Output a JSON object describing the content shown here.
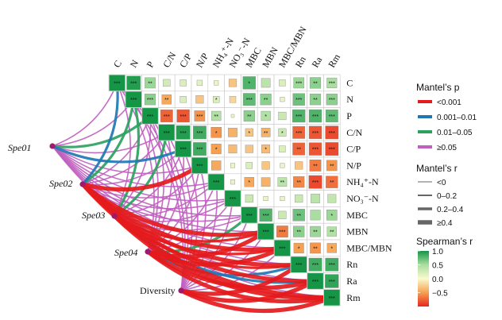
{
  "chart_data": {
    "type": "heatmap",
    "variables": [
      "C",
      "N",
      "P",
      "C/N",
      "C/P",
      "N/P",
      "NH₄⁺-N",
      "NO₃⁻-N",
      "MBC",
      "MBN",
      "MBC/MBN",
      "Rn",
      "Ra",
      "Rm"
    ],
    "matrix": [
      [
        1,
        0.95,
        0.55,
        0.25,
        0.2,
        0.15,
        0.1,
        -0.3,
        0.8,
        0.4,
        0.2,
        0.55,
        0.6,
        0.5
      ],
      [
        0.95,
        1,
        0.6,
        -0.45,
        0.2,
        -0.3,
        0.2,
        -0.2,
        0.75,
        0.6,
        0.1,
        0.7,
        0.6,
        0.6
      ],
      [
        0.55,
        0.6,
        1,
        -0.75,
        -0.8,
        -0.55,
        0.45,
        0.05,
        0.6,
        0.45,
        0.3,
        0.8,
        0.8,
        0.75
      ],
      [
        0.25,
        -0.45,
        -0.75,
        1,
        0.95,
        0.85,
        -0.55,
        -0.4,
        -0.3,
        -0.4,
        0.3,
        -0.75,
        -0.8,
        -0.85
      ],
      [
        0.2,
        0.2,
        -0.8,
        0.95,
        1,
        0.85,
        -0.5,
        -0.35,
        -0.3,
        -0.35,
        0.2,
        -0.75,
        -0.8,
        -0.85
      ],
      [
        0.15,
        -0.3,
        -0.55,
        0.85,
        0.85,
        1,
        -0.45,
        0.1,
        0.2,
        -0.3,
        0.1,
        -0.3,
        -0.65,
        -0.55
      ],
      [
        0.1,
        0.2,
        0.45,
        -0.55,
        -0.5,
        -0.45,
        1,
        0.1,
        -0.45,
        -0.4,
        0.4,
        -0.6,
        -0.85,
        -0.7
      ],
      [
        -0.3,
        -0.2,
        0.05,
        -0.4,
        -0.35,
        0.1,
        0.1,
        1,
        0.3,
        0.1,
        0.1,
        0.3,
        0.4,
        0.35
      ],
      [
        0.8,
        0.75,
        0.6,
        -0.3,
        -0.3,
        0.2,
        -0.45,
        0.3,
        1,
        0.8,
        0.3,
        0.7,
        0.5,
        0.55
      ],
      [
        0.4,
        0.6,
        0.45,
        -0.4,
        -0.35,
        -0.3,
        -0.4,
        0.1,
        0.8,
        1,
        -0.65,
        0.6,
        0.55,
        0.45
      ],
      [
        0.2,
        0.1,
        0.3,
        0.3,
        0.2,
        0.1,
        0.4,
        0.1,
        0.3,
        -0.65,
        1,
        -0.5,
        -0.55,
        -0.45
      ],
      [
        0.55,
        0.7,
        0.8,
        -0.75,
        -0.75,
        -0.3,
        -0.6,
        0.3,
        0.7,
        0.6,
        -0.5,
        1,
        0.85,
        0.85
      ],
      [
        0.6,
        0.6,
        0.8,
        -0.8,
        -0.8,
        -0.65,
        -0.85,
        0.4,
        0.5,
        0.55,
        -0.55,
        0.85,
        1,
        0.9
      ],
      [
        0.5,
        0.6,
        0.75,
        -0.85,
        -0.85,
        -0.55,
        -0.7,
        0.35,
        0.55,
        0.45,
        -0.45,
        0.85,
        0.9,
        1
      ]
    ],
    "significance": [
      [
        "***",
        "***",
        "**",
        "",
        "",
        "",
        "",
        "",
        "*",
        "",
        "",
        "***",
        "**",
        "***"
      ],
      [
        "",
        "***",
        "***",
        "**",
        "",
        "",
        "*",
        "",
        "***",
        "**",
        "",
        "***",
        "**",
        "***"
      ],
      [
        "",
        "",
        "***",
        "***",
        "***",
        "***",
        "**",
        "",
        "**",
        "*",
        "",
        "***",
        "***",
        "***"
      ],
      [
        "",
        "",
        "",
        "***",
        "***",
        "***",
        "*",
        "",
        "*",
        "**",
        "*",
        "***",
        "***",
        "***"
      ],
      [
        "",
        "",
        "",
        "",
        "***",
        "***",
        "*",
        "",
        "",
        "*",
        "",
        "**",
        "***",
        "***"
      ],
      [
        "",
        "",
        "",
        "",
        "",
        "***",
        "",
        "",
        "",
        "",
        "",
        "",
        "**",
        "**"
      ],
      [
        "",
        "",
        "",
        "",
        "",
        "",
        "***",
        "",
        "*",
        "",
        "**",
        "**",
        "***",
        "**"
      ],
      [
        "",
        "",
        "",
        "",
        "",
        "",
        "",
        "***",
        "",
        "",
        "",
        "",
        "",
        ""
      ],
      [
        "",
        "",
        "",
        "",
        "",
        "",
        "",
        "",
        "***",
        "***",
        "",
        "**",
        "",
        "*"
      ],
      [
        "",
        "",
        "",
        "",
        "",
        "",
        "",
        "",
        "",
        "***",
        "***",
        "**",
        "**",
        "**"
      ],
      [
        "",
        "",
        "",
        "",
        "",
        "",
        "",
        "",
        "",
        "",
        "***",
        "*",
        "**",
        "*"
      ],
      [
        "",
        "",
        "",
        "",
        "",
        "",
        "",
        "",
        "",
        "",
        "",
        "***",
        "***",
        "***"
      ],
      [
        "",
        "",
        "",
        "",
        "",
        "",
        "",
        "",
        "",
        "",
        "",
        "",
        "***",
        "***"
      ],
      [
        "",
        "",
        "",
        "",
        "",
        "",
        "",
        "",
        "",
        "",
        "",
        "",
        "",
        "***"
      ]
    ],
    "groups": [
      "Spe01",
      "Spe02",
      "Spe03",
      "Spe04",
      "Diversity"
    ],
    "mantel": [
      {
        "group": "Spe01",
        "p": [
          ">=0.05",
          ">=0.05",
          "0.01-0.05",
          ">=0.05",
          "0.001-0.01",
          ">=0.05",
          ">=0.05",
          ">=0.05",
          ">=0.05",
          ">=0.05",
          ">=0.05",
          ">=0.05",
          ">=0.05",
          ">=0.05"
        ],
        "r": [
          0.1,
          0.1,
          0.2,
          0.1,
          0.3,
          0.1,
          0.1,
          0.1,
          0.1,
          0.1,
          0.1,
          0.1,
          0.1,
          0.1
        ]
      },
      {
        "group": "Spe02",
        "p": [
          "0.001-0.01",
          "0.01-0.05",
          ">=0.05",
          ">=0.05",
          ">=0.05",
          "<0.001",
          ">=0.05",
          ">=0.05",
          ">=0.05",
          "<0.001",
          "<0.001",
          "<0.001",
          "<0.001",
          "<0.001"
        ],
        "r": [
          0.3,
          0.2,
          0.1,
          0.1,
          0.1,
          0.5,
          0.1,
          0.1,
          0.1,
          0.5,
          0.5,
          0.5,
          0.5,
          0.5
        ]
      },
      {
        "group": "Spe03",
        "p": [
          ">=0.05",
          "0.01-0.05",
          ">=0.05",
          "0.01-0.05",
          ">=0.05",
          ">=0.05",
          ">=0.05",
          ">=0.05",
          ">=0.05",
          "<0.001",
          "<0.001",
          "<0.001",
          "0.001-0.01",
          "<0.001"
        ],
        "r": [
          0.1,
          0.2,
          0.1,
          0.2,
          0.1,
          0.1,
          0.1,
          0.1,
          0.1,
          0.3,
          0.3,
          0.3,
          0.3,
          0.4
        ]
      },
      {
        "group": "Spe04",
        "p": [
          ">=0.05",
          ">=0.05",
          ">=0.05",
          ">=0.05",
          ">=0.05",
          ">=0.05",
          ">=0.05",
          ">=0.05",
          "0.01-0.05",
          "<0.001",
          "<0.001",
          "0.001-0.01",
          "<0.001",
          "<0.001"
        ],
        "r": [
          0.1,
          0.1,
          0.1,
          0.1,
          0.1,
          0.1,
          0.1,
          0.1,
          0.2,
          0.4,
          0.4,
          0.3,
          0.4,
          0.4
        ]
      },
      {
        "group": "Diversity",
        "p": [
          ">=0.05",
          ">=0.05",
          ">=0.05",
          ">=0.05",
          ">=0.05",
          ">=0.05",
          ">=0.05",
          ">=0.05",
          ">=0.05",
          ">=0.05",
          ">=0.05",
          "<0.001",
          "<0.001",
          "<0.001"
        ],
        "r": [
          0.1,
          0.1,
          0.1,
          0.1,
          0.1,
          0.1,
          0.1,
          0.1,
          0.1,
          0.1,
          0.1,
          0.5,
          0.5,
          0.5
        ]
      }
    ],
    "color_scale": {
      "min": -1.0,
      "max": 1.0,
      "ticks": [
        1.0,
        0.5,
        0.0,
        -0.5
      ]
    },
    "legend_mantel_p": [
      {
        "label": "<0.001",
        "color": "#e41a1c"
      },
      {
        "label": "0.001–0.01",
        "color": "#1f78b4"
      },
      {
        "label": "0.01–0.05",
        "color": "#2ca25f"
      },
      {
        "label": "≥0.05",
        "color": "#c05fc0"
      }
    ],
    "legend_mantel_r": [
      {
        "label": "<0",
        "width": 1
      },
      {
        "label": "0–0.2",
        "width": 2
      },
      {
        "label": "0.2–0.4",
        "width": 3.5
      },
      {
        "label": "≥0.4",
        "width": 5.5
      }
    ],
    "legend_titles": {
      "mantel_p": "Mantel’s p",
      "mantel_r": "Mantel’s r",
      "spearman": "Spearman’s r"
    }
  }
}
